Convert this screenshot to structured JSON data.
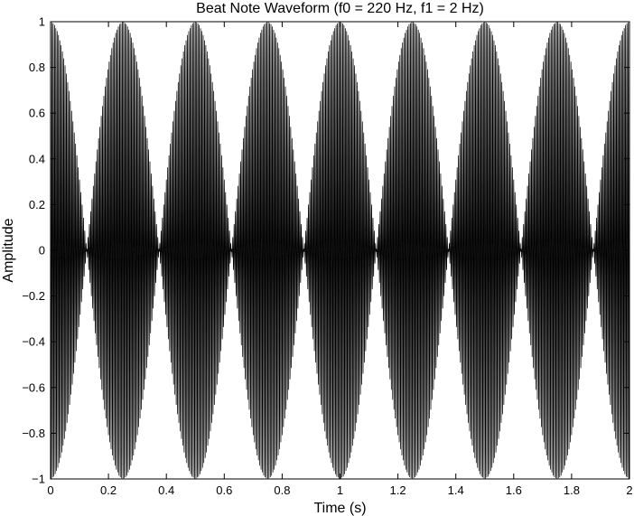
{
  "chart_data": {
    "type": "line",
    "title": "Beat Note Waveform (f0 = 220 Hz, f1 = 2 Hz)",
    "xlabel": "Time (s)",
    "ylabel": "Amplitude",
    "xlim": [
      0,
      2
    ],
    "ylim": [
      -1,
      1
    ],
    "x_ticks": [
      0,
      0.2,
      0.4,
      0.6,
      0.8,
      1,
      1.2,
      1.4,
      1.6,
      1.8,
      2
    ],
    "x_tick_labels": [
      "0",
      "0.2",
      "0.4",
      "0.6",
      "0.8",
      "1",
      "1.2",
      "1.4",
      "1.6",
      "1.8",
      "2"
    ],
    "y_ticks": [
      -1,
      -0.8,
      -0.6,
      -0.4,
      -0.2,
      0,
      0.2,
      0.4,
      0.6,
      0.8,
      1
    ],
    "y_tick_labels": [
      "−1",
      "−0.8",
      "−0.6",
      "−0.4",
      "−0.2",
      "0",
      "0.2",
      "0.4",
      "0.6",
      "0.8",
      "1"
    ],
    "grid": false,
    "series": [
      {
        "function": "cos(2*pi*f1*t) * cos(2*pi*f0*t)",
        "f0": 220,
        "f1": 2,
        "t_start": 0,
        "t_end": 2,
        "color": "#000000"
      }
    ]
  }
}
